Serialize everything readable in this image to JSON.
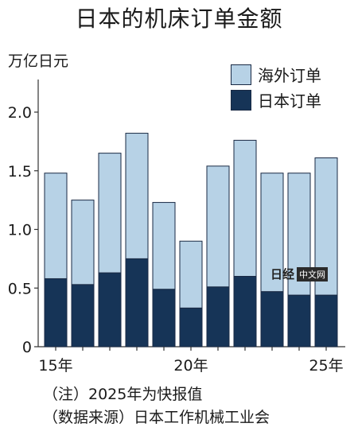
{
  "title": "日本的机床订单金额",
  "unit_label": "万亿日元",
  "legend": [
    {
      "label": "海外订单",
      "color": "#b7d2e6"
    },
    {
      "label": "日本订单",
      "color": "#163457"
    }
  ],
  "notes": [
    "（注）2025年为快报值",
    "（数据来源）日本工作机械工业会"
  ],
  "watermark": {
    "logo": "日经",
    "box": "中文网"
  },
  "colors": {
    "domestic": "#163457",
    "overseas": "#b7d2e6",
    "stroke": "#1a2a44"
  },
  "chart_data": {
    "type": "bar",
    "stacked": true,
    "title": "日本的机床订单金额",
    "ylabel": "万亿日元",
    "categories": [
      "2015",
      "2016",
      "2017",
      "2018",
      "2019",
      "2020",
      "2021",
      "2022",
      "2023",
      "2024",
      "2025"
    ],
    "xtick_labels": [
      "15年",
      "",
      "",
      "",
      "",
      "20年",
      "",
      "",
      "",
      "",
      "25年"
    ],
    "ylim": [
      0,
      2.0
    ],
    "yticks": [
      "0",
      "0.5",
      "1.0",
      "1.5",
      "2.0"
    ],
    "series": [
      {
        "name": "日本订单",
        "values": [
          0.58,
          0.53,
          0.63,
          0.75,
          0.49,
          0.33,
          0.51,
          0.6,
          0.47,
          0.44,
          0.44
        ]
      },
      {
        "name": "海外订单",
        "values": [
          0.9,
          0.72,
          1.02,
          1.07,
          0.74,
          0.57,
          1.03,
          1.16,
          1.01,
          1.04,
          1.17
        ]
      }
    ],
    "totals": [
      1.48,
      1.25,
      1.65,
      1.82,
      1.23,
      0.9,
      1.54,
      1.76,
      1.48,
      1.48,
      1.61
    ],
    "grid": false,
    "legend_position": "top-right"
  }
}
